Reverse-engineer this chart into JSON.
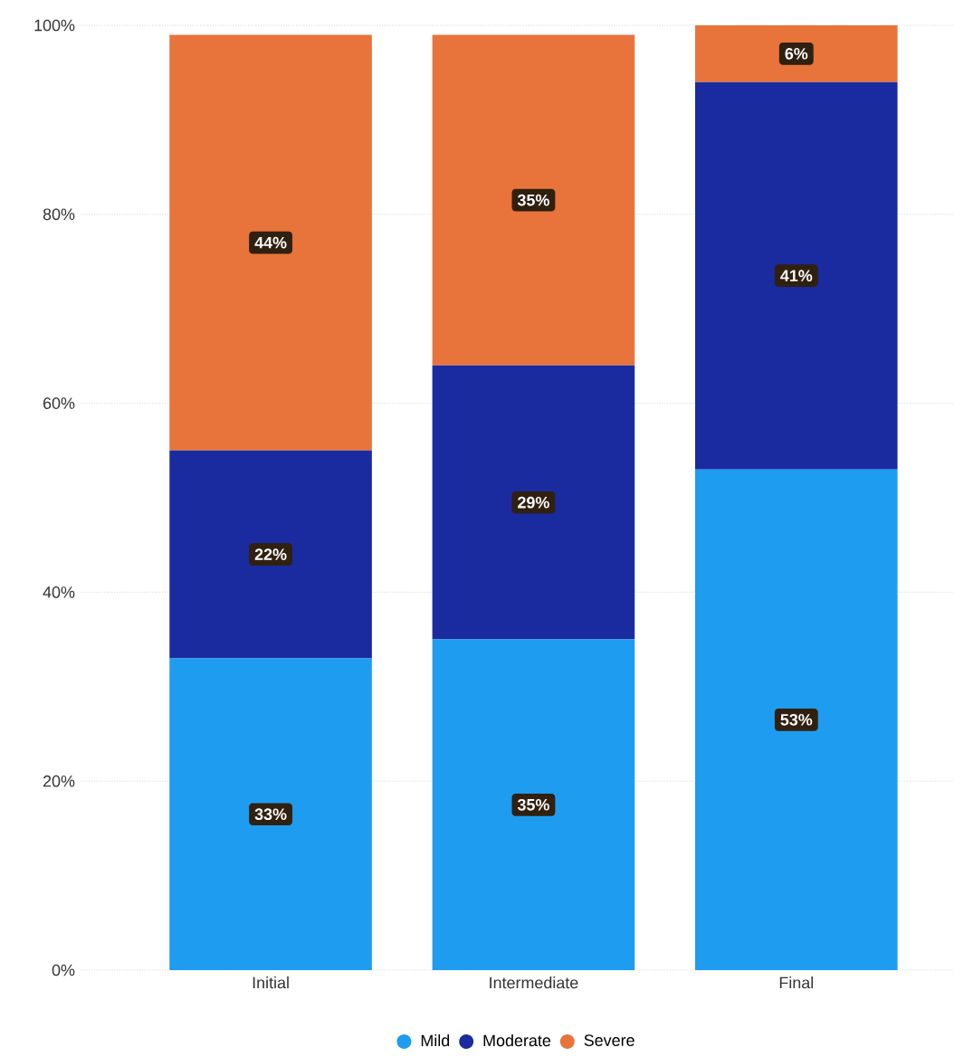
{
  "chart_data": {
    "type": "bar",
    "stacked": true,
    "categories": [
      "Initial",
      "Intermediate",
      "Final"
    ],
    "series": [
      {
        "name": "Mild",
        "color": "#1e9cf0",
        "values": [
          33,
          35,
          53
        ],
        "value_labels": [
          "33%",
          "35%",
          "53%"
        ]
      },
      {
        "name": "Moderate",
        "color": "#1a2ba0",
        "values": [
          22,
          29,
          41
        ],
        "value_labels": [
          "22%",
          "29%",
          "41%"
        ]
      },
      {
        "name": "Severe",
        "color": "#e8743b",
        "values": [
          44,
          35,
          6
        ],
        "value_labels": [
          "44%",
          "35%",
          "6%"
        ]
      }
    ],
    "ylim": [
      0,
      100
    ],
    "yticks": [
      {
        "value": 0,
        "label": "0%"
      },
      {
        "value": 20,
        "label": "20%"
      },
      {
        "value": 40,
        "label": "40%"
      },
      {
        "value": 60,
        "label": "60%"
      },
      {
        "value": 80,
        "label": "80%"
      },
      {
        "value": 100,
        "label": "100%"
      }
    ],
    "grid": "y",
    "legend": "bottom"
  }
}
